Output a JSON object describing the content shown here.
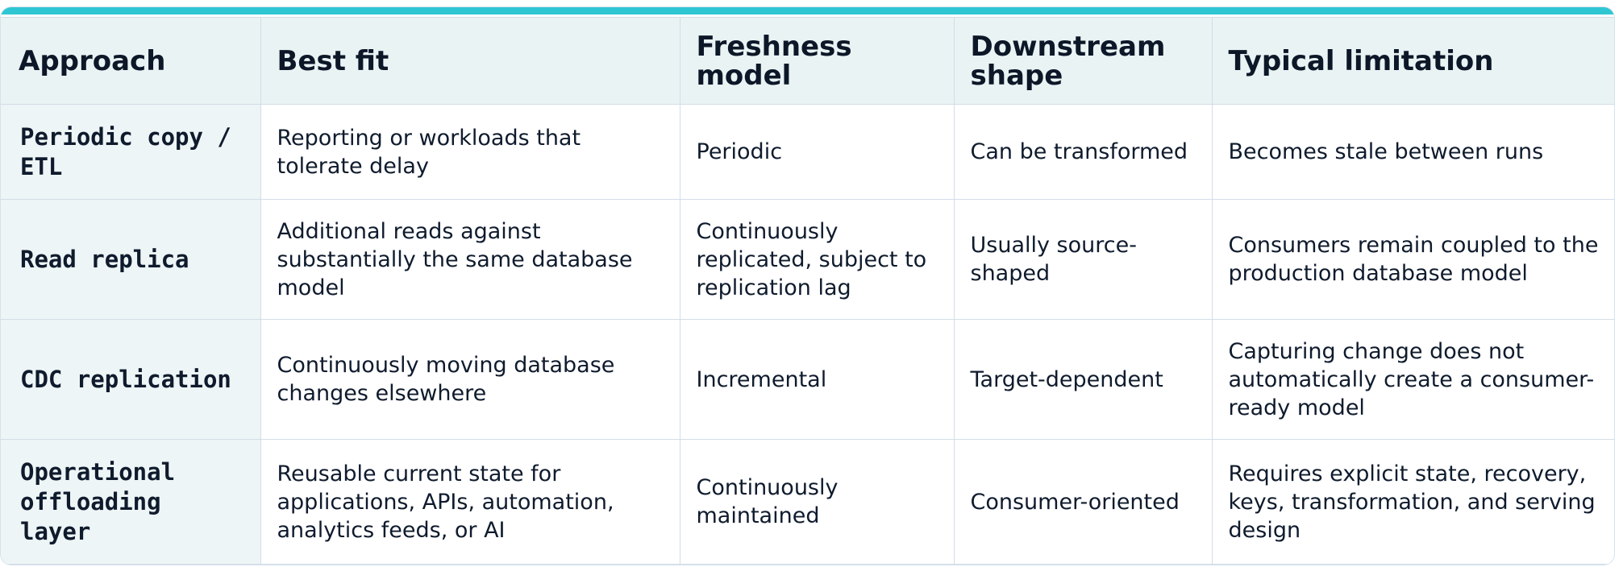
{
  "colors": {
    "accent": "#2fc6d3",
    "header_bg": "#e9f3f4",
    "first_col_bg": "#eef5f6",
    "text": "#0f1b2d"
  },
  "table": {
    "headers": [
      "Approach",
      "Best fit",
      "Freshness model",
      "Downstream shape",
      "Typical limitation"
    ],
    "rows": [
      [
        "Periodic copy / ETL",
        "Reporting or workloads that tolerate delay",
        "Periodic",
        "Can be transformed",
        "Becomes stale between runs"
      ],
      [
        "Read replica",
        "Additional reads against substantially the same database model",
        "Continuously replicated, subject to replication lag",
        "Usually source-shaped",
        "Consumers remain coupled to the production database model"
      ],
      [
        "CDC replication",
        "Continuously moving database changes elsewhere",
        "Incremental",
        "Target-dependent",
        "Capturing change does not automatically create a consumer-ready model"
      ],
      [
        "Operational offloading layer",
        "Reusable current state for applications, APIs, automation, analytics feeds, or AI",
        "Continuously maintained",
        "Consumer-oriented",
        "Requires explicit state, recovery, keys, transformation, and serving design"
      ]
    ]
  }
}
